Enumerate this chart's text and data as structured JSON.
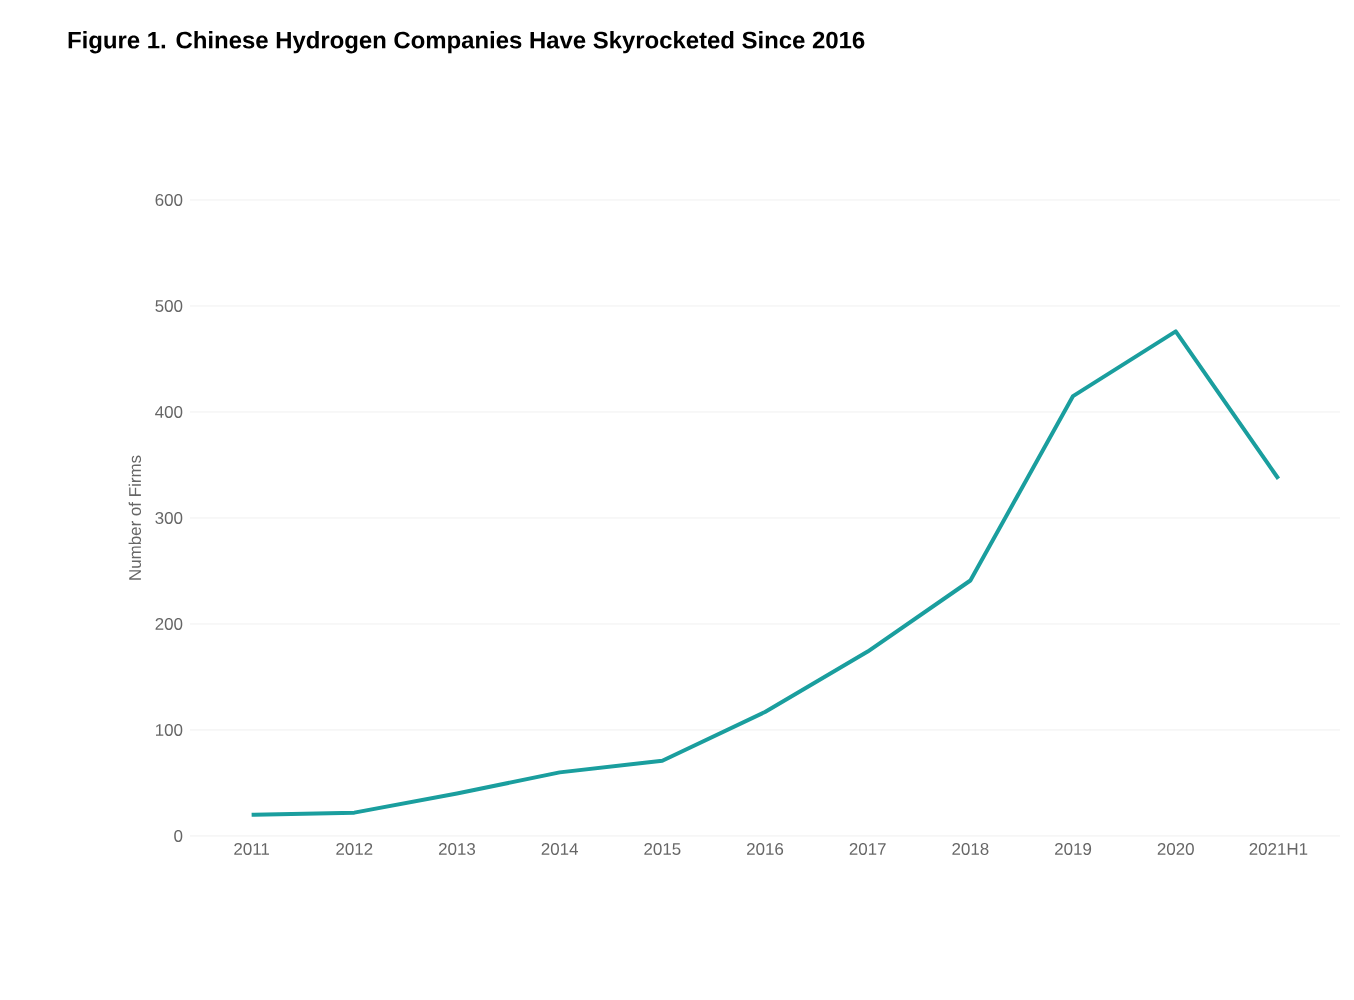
{
  "chart_data": {
    "type": "line",
    "title": "Figure 1. Chinese Hydrogen Companies Have Skyrocketed Since 2016",
    "ylabel": "Number of Firms",
    "categories": [
      "2011",
      "2012",
      "2013",
      "2014",
      "2015",
      "2016",
      "2017",
      "2018",
      "2019",
      "2020",
      "2021H1"
    ],
    "values": [
      20,
      22,
      40,
      60,
      71,
      117,
      174,
      241,
      415,
      476,
      337
    ],
    "color": "#1a9e9e",
    "ylim": [
      0,
      600
    ],
    "yticks": [
      0,
      100,
      200,
      300,
      400,
      500,
      600
    ],
    "grid": "y",
    "marker": "none",
    "line_style": "solid"
  }
}
